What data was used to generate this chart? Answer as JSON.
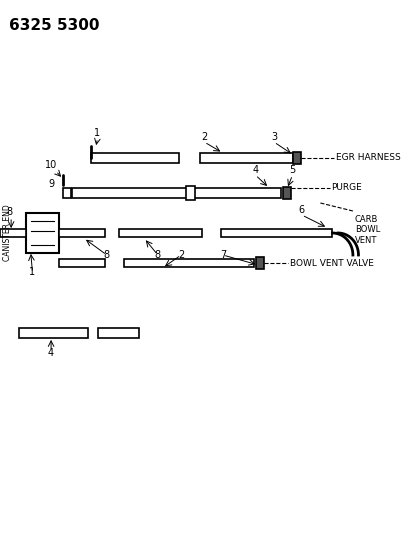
{
  "title_number": "6325 5300",
  "bg_color": "#ffffff",
  "line_color": "#000000",
  "labels": {
    "canister_end": "CANISTER END",
    "egr_harness": "EGR HARNESS",
    "purge": "PURGE",
    "carb_bowl_vent": "CARB\nBOWL\nVENT",
    "bowl_vent_valve": "BOWL VENT VALVE"
  },
  "part_numbers": [
    "1",
    "2",
    "3",
    "4",
    "5",
    "6",
    "7",
    "8",
    "9",
    "10"
  ]
}
